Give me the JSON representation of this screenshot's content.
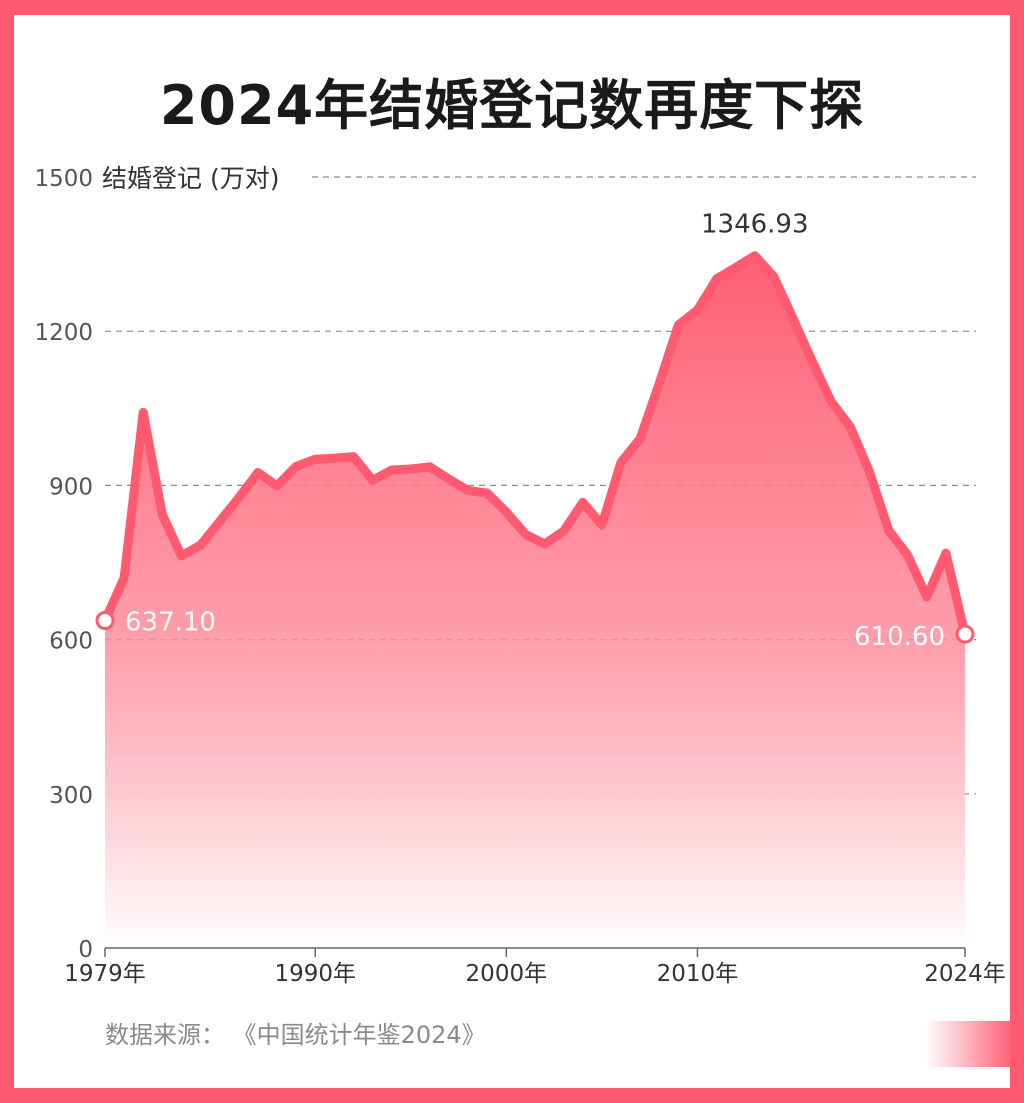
{
  "title": "2024年结婚登记数再度下探",
  "source": "数据来源：  《中国统计年鉴2024》",
  "colors": {
    "accent": "#ff5a70",
    "line": "#ff5a70",
    "background": "#ffffff"
  },
  "chart_data": {
    "type": "area",
    "ylabel": "结婚登记 (万对)",
    "ylim": [
      0,
      1500
    ],
    "yticks": [
      0,
      300,
      600,
      900,
      1200,
      1500
    ],
    "xlim": [
      1979,
      2024
    ],
    "xticks": [
      1979,
      1990,
      2000,
      2010,
      2024
    ],
    "xtick_labels": [
      "1979年",
      "1990年",
      "2000年",
      "2010年",
      "2024年"
    ],
    "grid": true,
    "x": [
      1979,
      1980,
      1981,
      1982,
      1983,
      1984,
      1985,
      1986,
      1987,
      1988,
      1989,
      1990,
      1991,
      1992,
      1993,
      1994,
      1995,
      1996,
      1997,
      1998,
      1999,
      2000,
      2001,
      2002,
      2003,
      2004,
      2005,
      2006,
      2007,
      2008,
      2009,
      2010,
      2011,
      2012,
      2013,
      2014,
      2015,
      2016,
      2017,
      2018,
      2019,
      2020,
      2021,
      2022,
      2023,
      2024
    ],
    "values": [
      637.1,
      720,
      1042,
      843,
      763,
      784,
      830,
      876,
      925,
      899,
      937,
      951,
      953,
      956,
      910,
      930,
      932,
      936,
      912,
      890,
      885,
      848,
      805,
      786,
      811,
      867,
      823,
      945,
      991,
      1098,
      1212,
      1241,
      1302,
      1324,
      1346.93,
      1306,
      1225,
      1142,
      1063,
      1014,
      927,
      813,
      764,
      683,
      768,
      610.6
    ],
    "annotations": [
      {
        "x": 1979,
        "value": 637.1,
        "label": "637.10"
      },
      {
        "x": 2013,
        "value": 1346.93,
        "label": "1346.93"
      },
      {
        "x": 2024,
        "value": 610.6,
        "label": "610.60"
      }
    ]
  }
}
